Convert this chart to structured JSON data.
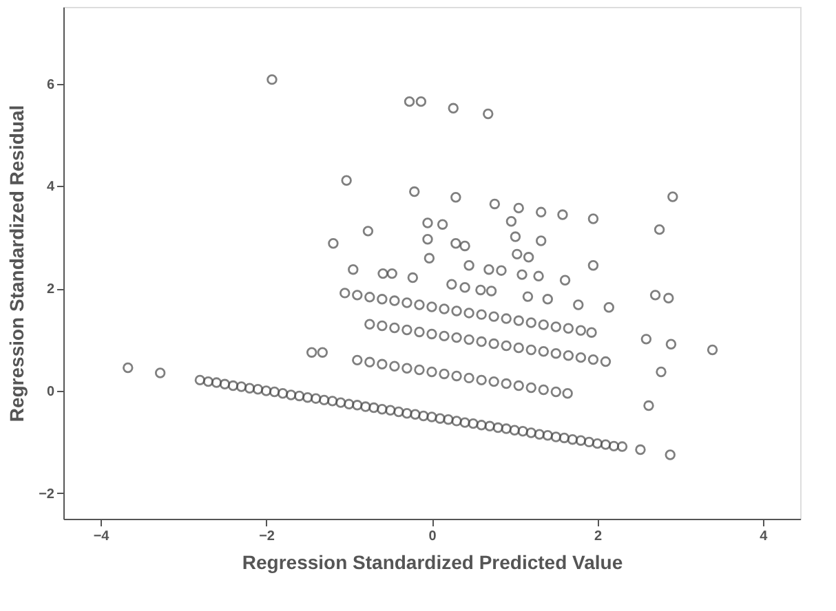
{
  "chart_data": {
    "type": "scatter",
    "xlabel": "Regression Standardized Predicted Value",
    "ylabel": "Regression Standardized Residual",
    "xlim": [
      -4.45,
      4.45
    ],
    "ylim": [
      -2.5,
      7.5
    ],
    "xticks": [
      -4,
      -2,
      0,
      2,
      4
    ],
    "yticks": [
      -2,
      0,
      2,
      4,
      6
    ],
    "marker": "circle",
    "series": [
      {
        "color": "#4a4a4a",
        "x": [
          -2.8,
          -2.7,
          -2.6,
          -2.5,
          -2.4,
          -2.3,
          -2.2,
          -2.1,
          -2.0,
          -1.9,
          -1.8,
          -1.7,
          -1.6,
          -1.5,
          -1.4,
          -1.3,
          -1.2,
          -1.1,
          -1.0,
          -0.9,
          -0.8,
          -0.7,
          -0.6,
          -0.5,
          -0.4,
          -0.3,
          -0.2,
          -0.1,
          0.0,
          0.1,
          0.2,
          0.3,
          0.4,
          0.5,
          0.6,
          0.7,
          0.8,
          0.9,
          1.0,
          1.1,
          1.2,
          1.3,
          1.4,
          1.5,
          1.6,
          1.7,
          1.8,
          1.9,
          2.0,
          2.1,
          2.2,
          -0.9,
          -0.75,
          -0.6,
          -0.45,
          -0.3,
          -0.15,
          0,
          0.15,
          0.3,
          0.45,
          0.6,
          0.75,
          0.9,
          1.05,
          1.2,
          1.35,
          1.5,
          1.64,
          -0.75,
          -0.6,
          -0.45,
          -0.3,
          -0.15,
          0,
          0.15,
          0.3,
          0.45,
          0.6,
          0.75,
          0.9,
          1.05,
          1.2,
          1.35,
          1.5,
          1.65,
          1.8,
          1.95,
          2.1,
          -1.05,
          -0.9,
          -0.75,
          -0.6,
          -0.45,
          -0.3,
          -0.15,
          0,
          0.15,
          0.3,
          0.45,
          0.6,
          0.75,
          0.9,
          1.05,
          1.2,
          1.35,
          1.5,
          1.65,
          1.8,
          1.93,
          -1.93,
          -0.27,
          -0.13,
          0.26,
          0.68,
          -1.03,
          -0.21,
          0.29,
          0.76,
          1.05,
          1.32,
          1.58,
          1.95,
          2.91,
          2.75,
          -0.77,
          -1.19,
          -0.05,
          -0.05,
          -0.03,
          -0.95,
          -0.59,
          -0.48,
          -0.23,
          0.13,
          0.29,
          0.4,
          0.96,
          1.01,
          1.32,
          1.03,
          1.17,
          0.45,
          0.69,
          0.84,
          1.09,
          1.29,
          1.61,
          1.95,
          0.24,
          0.4,
          0.59,
          0.72,
          1.16,
          1.4,
          1.77,
          2.14,
          2.7,
          2.86,
          2.59,
          2.89,
          3.39,
          2.77,
          2.62,
          2.52,
          2.88,
          2.3,
          -3.67,
          -3.28,
          -1.45,
          -1.32
        ],
        "values": [
          0.21,
          0.18,
          0.16,
          0.13,
          0.1,
          0.08,
          0.05,
          0.03,
          0.0,
          -0.02,
          -0.05,
          -0.08,
          -0.1,
          -0.13,
          -0.15,
          -0.18,
          -0.2,
          -0.23,
          -0.26,
          -0.28,
          -0.31,
          -0.33,
          -0.36,
          -0.38,
          -0.41,
          -0.44,
          -0.46,
          -0.49,
          -0.51,
          -0.54,
          -0.56,
          -0.59,
          -0.62,
          -0.64,
          -0.67,
          -0.69,
          -0.72,
          -0.74,
          -0.77,
          -0.79,
          -0.82,
          -0.85,
          -0.87,
          -0.9,
          -0.92,
          -0.95,
          -0.97,
          -1.0,
          -1.03,
          -1.05,
          -1.08,
          0.6,
          0.56,
          0.52,
          0.48,
          0.44,
          0.41,
          0.37,
          0.33,
          0.29,
          0.25,
          0.21,
          0.18,
          0.14,
          0.1,
          0.06,
          0.02,
          -0.02,
          -0.05,
          1.3,
          1.27,
          1.23,
          1.19,
          1.15,
          1.11,
          1.07,
          1.04,
          1.0,
          0.96,
          0.92,
          0.88,
          0.84,
          0.8,
          0.77,
          0.73,
          0.69,
          0.65,
          0.61,
          0.57,
          1.91,
          1.87,
          1.83,
          1.79,
          1.76,
          1.72,
          1.68,
          1.64,
          1.6,
          1.56,
          1.52,
          1.49,
          1.45,
          1.41,
          1.37,
          1.33,
          1.29,
          1.25,
          1.22,
          1.18,
          1.14,
          6.08,
          5.65,
          5.65,
          5.52,
          5.41,
          4.11,
          3.89,
          3.78,
          3.65,
          3.57,
          3.49,
          3.44,
          3.36,
          3.79,
          3.15,
          3.12,
          2.88,
          3.28,
          2.96,
          2.59,
          2.37,
          2.29,
          2.29,
          2.21,
          3.25,
          2.88,
          2.83,
          3.31,
          3.01,
          2.93,
          2.67,
          2.61,
          2.45,
          2.37,
          2.35,
          2.27,
          2.24,
          2.16,
          2.45,
          2.08,
          2.02,
          1.97,
          1.95,
          1.84,
          1.79,
          1.68,
          1.63,
          1.87,
          1.81,
          1.01,
          0.91,
          0.8,
          0.37,
          -0.29,
          -1.15,
          -1.25,
          -1.09,
          0.45,
          0.35,
          0.75,
          0.75
        ]
      }
    ]
  }
}
